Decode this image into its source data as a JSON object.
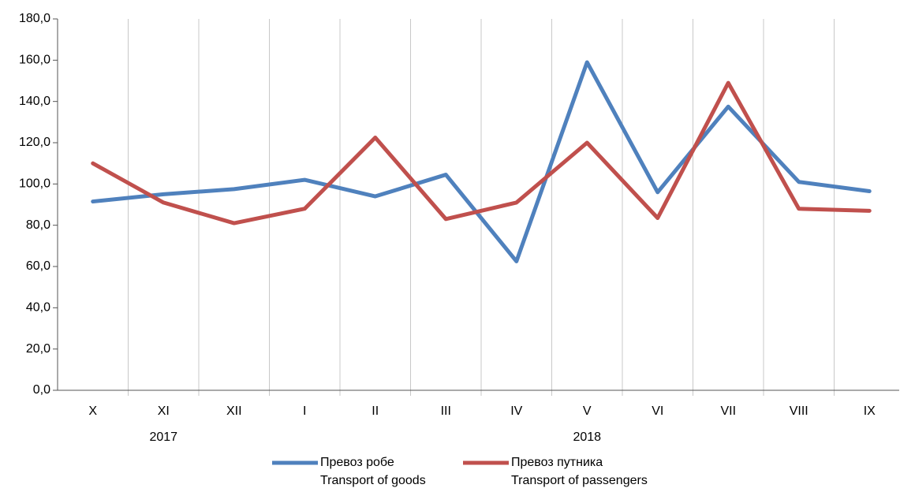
{
  "chart_data": {
    "type": "line",
    "categories": [
      "X",
      "XI",
      "XII",
      "I",
      "II",
      "III",
      "IV",
      "V",
      "VI",
      "VII",
      "VIII",
      "IX"
    ],
    "series": [
      {
        "name": "Превоз робе",
        "name_en": "Transport of goods",
        "color": "#4f81bd",
        "values": [
          91.5,
          95,
          97.5,
          102,
          94,
          104.5,
          62.5,
          159,
          96,
          137.5,
          101,
          96.5
        ]
      },
      {
        "name": "Превоз путника",
        "name_en": "Transport of passengers",
        "color": "#c0504d",
        "values": [
          110,
          91,
          81,
          88,
          122.5,
          83,
          91,
          120,
          83.5,
          149,
          88,
          87
        ]
      }
    ],
    "ylim": [
      0,
      180
    ],
    "yticks": [
      {
        "value": 0,
        "label": "0,0"
      },
      {
        "value": 20,
        "label": "20,0"
      },
      {
        "value": 40,
        "label": "40,0"
      },
      {
        "value": 60,
        "label": "60,0"
      },
      {
        "value": 80,
        "label": "80,0"
      },
      {
        "value": 100,
        "label": "100,0"
      },
      {
        "value": 120,
        "label": "120,0"
      },
      {
        "value": 140,
        "label": "140,0"
      },
      {
        "value": 160,
        "label": "160,0"
      },
      {
        "value": 180,
        "label": "180,0"
      }
    ],
    "grid": true,
    "annotations": [
      {
        "text": "2017",
        "at": "XI"
      },
      {
        "text": "2018",
        "at": "V"
      }
    ],
    "legend": "bottom"
  }
}
